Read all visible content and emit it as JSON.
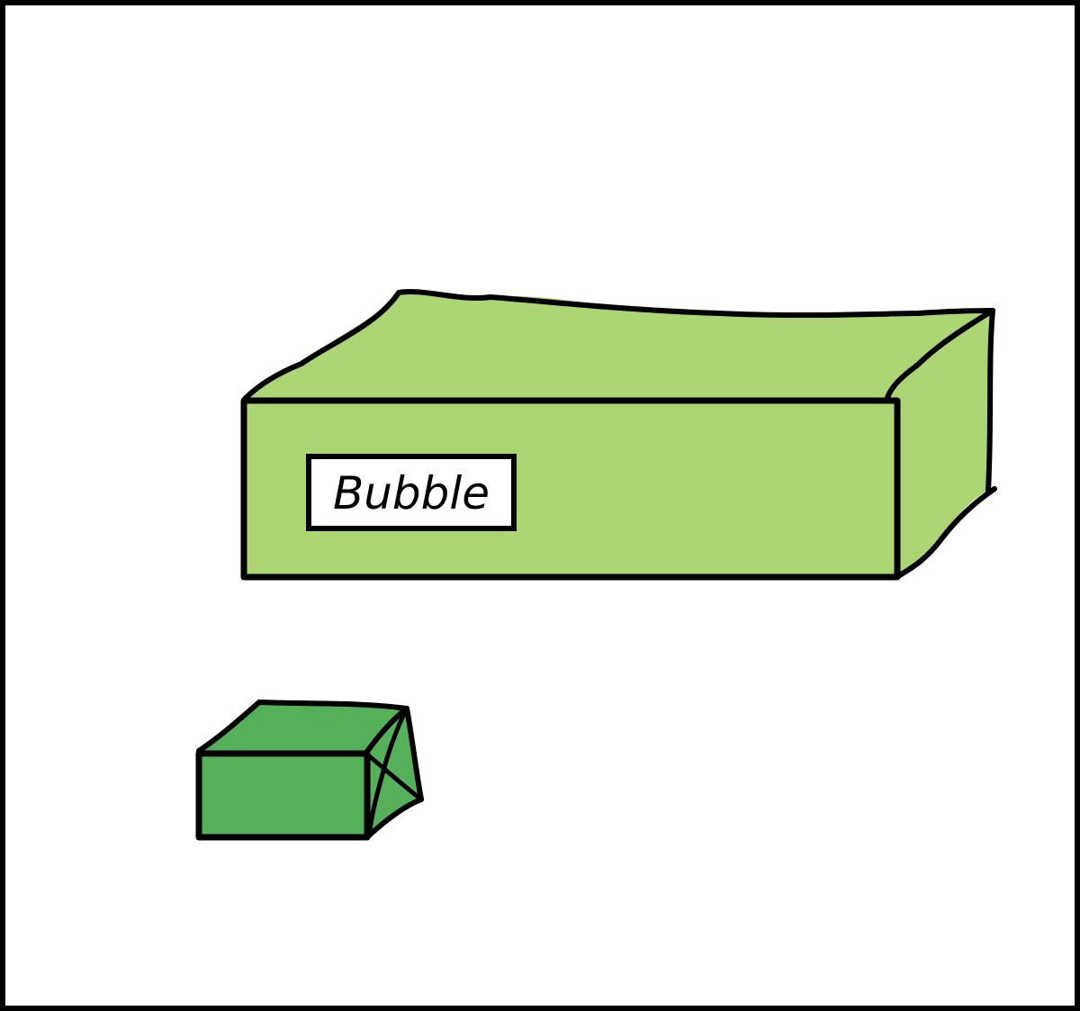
{
  "scene": {
    "large_box": {
      "label": "Bubble",
      "color": "#acd574"
    },
    "small_box": {
      "color": "#55b05a"
    },
    "frame_color": "#000000",
    "background": "#ffffff",
    "outline_color": "#000000"
  }
}
